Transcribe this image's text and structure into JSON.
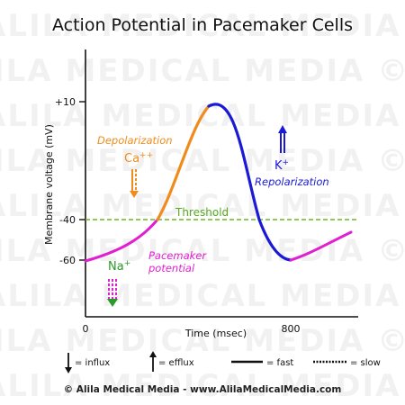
{
  "title": "Action Potential in Pacemaker Cells",
  "watermark": "ALILA MEDICAL MEDIA © ALILA MEDICAL MEDIA",
  "axes": {
    "ylabel": "Membrane voltage (mV)",
    "xlabel": "Time (msec)",
    "y_ticks": [
      "+10",
      "-40",
      "-60"
    ],
    "x_ticks": [
      "0",
      "800"
    ]
  },
  "threshold_label": "Threshold",
  "phases": {
    "depolarization": {
      "label": "Depolarization",
      "ion": "Ca",
      "ion_sup": "++",
      "color": "#f08c1e"
    },
    "repolarization": {
      "label": "Repolarization",
      "ion": "K",
      "ion_sup": "+",
      "color": "#1a1ad6"
    },
    "pacemaker": {
      "label_line1": "Pacemaker",
      "label_line2": "potential",
      "ion": "Na",
      "ion_sup": "+",
      "ion_color": "#2a9a2a",
      "color": "#e020d0"
    }
  },
  "threshold_color": "#6ab82a",
  "legend": {
    "influx": "= influx",
    "efflux": "= efflux",
    "fast": "= fast",
    "slow": "= slow"
  },
  "credit": "© Alila Medical Media - www.AlilaMedicalMedia.com"
}
